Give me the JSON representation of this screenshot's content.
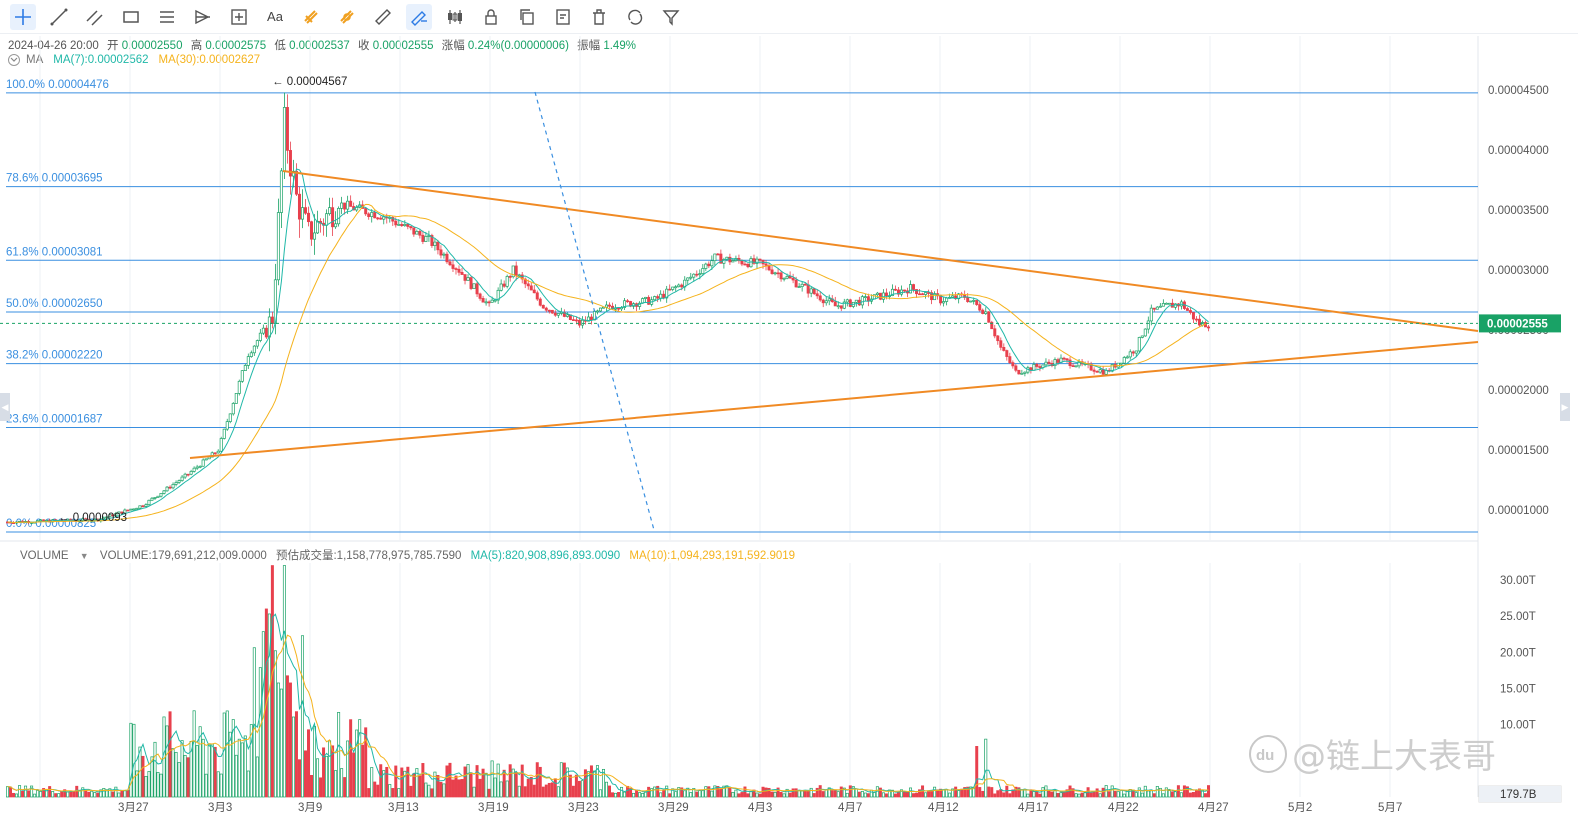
{
  "toolbar": {
    "items": [
      {
        "name": "crosshair-icon",
        "active": true
      },
      {
        "name": "trend-line-icon"
      },
      {
        "name": "parallel-channel-icon"
      },
      {
        "name": "rectangle-icon"
      },
      {
        "name": "horizontal-lines-icon"
      },
      {
        "name": "pitchfork-icon"
      },
      {
        "name": "measure-box-icon"
      },
      {
        "name": "text-tool-icon",
        "label": "Aa"
      },
      {
        "name": "magnet-icon",
        "accent": true
      },
      {
        "name": "lock-magnet-icon",
        "accent": true
      },
      {
        "name": "ruler-icon"
      },
      {
        "name": "edit-ruler-icon",
        "active": true
      },
      {
        "name": "candles-icon"
      },
      {
        "name": "lock-icon"
      },
      {
        "name": "copy-icon"
      },
      {
        "name": "edit-icon"
      },
      {
        "name": "trash-icon"
      },
      {
        "name": "sync-icon"
      },
      {
        "name": "filter-icon"
      }
    ]
  },
  "info": {
    "datetime": "2024-04-26 20:00",
    "open_label": "开",
    "open": "0.00002550",
    "high_label": "高",
    "high": "0.00002575",
    "low_label": "低",
    "low": "0.00002537",
    "close_label": "收",
    "close": "0.00002555",
    "change_label": "涨幅",
    "change": "0.24%(0.00000006)",
    "amp_label": "振幅",
    "amp": "1.49%"
  },
  "ma": {
    "label": "MA",
    "ma7": "MA(7):0.00002562",
    "ma30": "MA(30):0.00002627"
  },
  "volume_info": {
    "label": "VOLUME",
    "value": "VOLUME:179,691,212,009.0000",
    "estimate": "预估成交量:1,158,778,975,785.7590",
    "ma5": "MA(5):820,908,896,893.0090",
    "ma10": "MA(10):1,094,293,191,592.9019"
  },
  "colors": {
    "up": "#19a266",
    "down": "#e8404d",
    "fib": "#3a8fe0",
    "trend": "#f08a24",
    "ma7": "#20b8a8",
    "ma30": "#f5b31d",
    "grid": "#eef1f5"
  },
  "chart_data": {
    "type": "candlestick",
    "y_axis_labels": [
      "0.00004500",
      "0.00004000",
      "0.00003500",
      "0.00003000",
      "0.00002500",
      "0.00002000",
      "0.00001500",
      "0.00001000"
    ],
    "last_price": "0.00002555",
    "fib_levels": [
      {
        "label": "100.0% 0.00004476",
        "value": 4.476e-05
      },
      {
        "label": "78.6% 0.00003695",
        "value": 3.695e-05
      },
      {
        "label": "61.8% 0.00003081",
        "value": 3.081e-05
      },
      {
        "label": "50.0% 0.00002650",
        "value": 2.65e-05
      },
      {
        "label": "38.2% 0.00002220",
        "value": 2.22e-05
      },
      {
        "label": "23.6% 0.00001687",
        "value": 1.687e-05
      },
      {
        "label": "0.0% 0.00000825",
        "value": 8.25e-06
      }
    ],
    "high_marker": "← 0.00004567",
    "low_marker": "← 0.0000093",
    "x_labels": [
      "3月27",
      "3月3",
      "3月9",
      "3月13",
      "3月19",
      "3月23",
      "3月29",
      "4月3",
      "4月7",
      "4月12",
      "4月17",
      "4月22",
      "4月27",
      "5月2",
      "5月7"
    ],
    "volume_axis_labels": [
      "30.00T",
      "25.00T",
      "20.00T",
      "15.00T",
      "10.00T"
    ],
    "last_volume": "179.7B"
  },
  "watermark": "@链上大表哥",
  "watermark_logo": "du"
}
